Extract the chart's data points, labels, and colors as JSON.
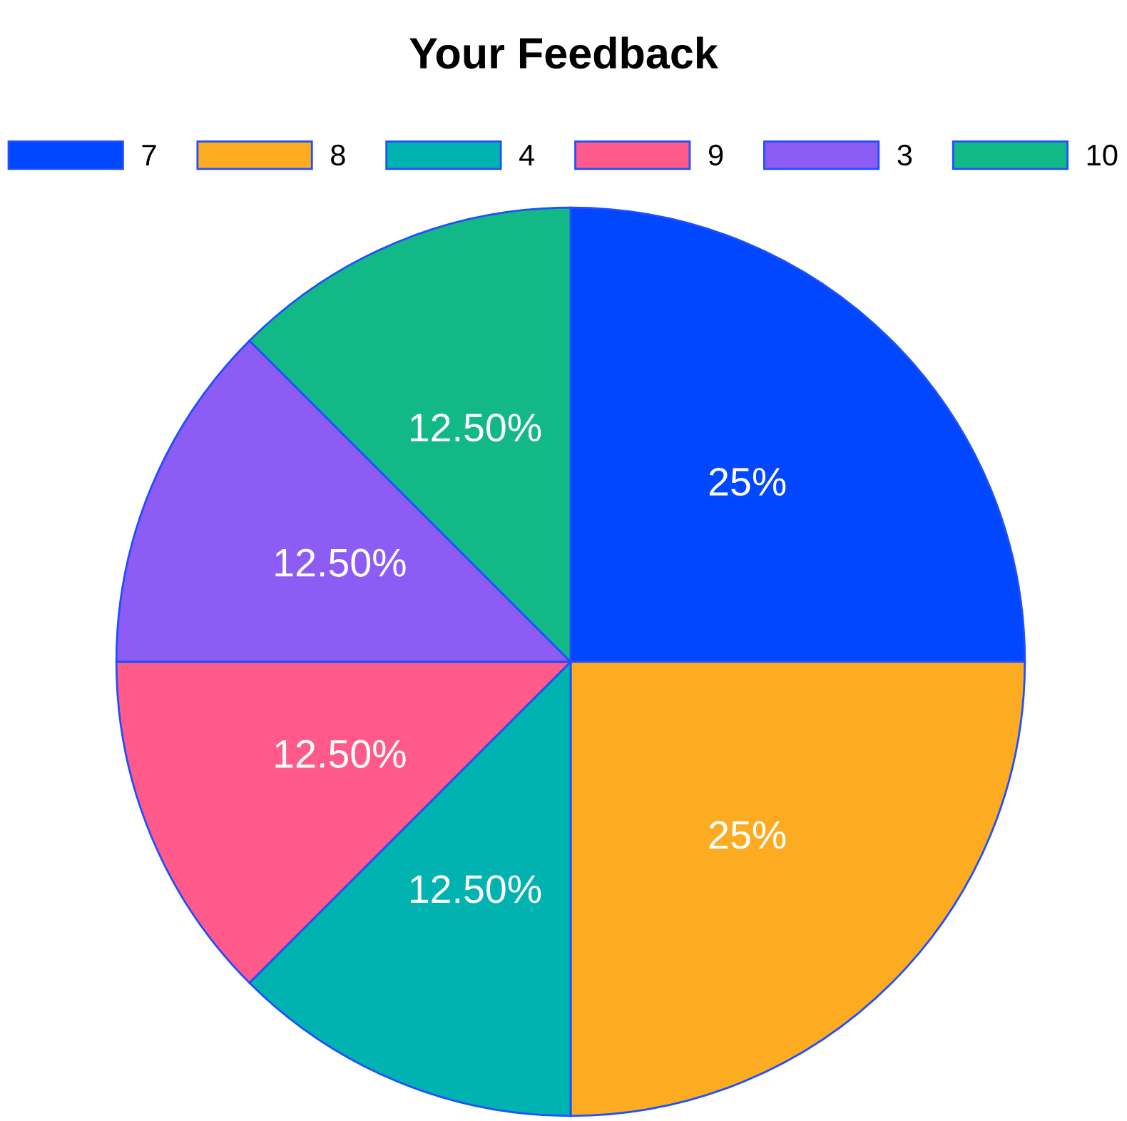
{
  "chart_data": {
    "type": "pie",
    "title": "Your Feedback",
    "categories": [
      "7",
      "8",
      "4",
      "9",
      "3",
      "10"
    ],
    "values": [
      25,
      25,
      12.5,
      12.5,
      12.5,
      12.5
    ],
    "value_labels": [
      "25%",
      "25%",
      "12.50%",
      "12.50%",
      "12.50%",
      "12.50%"
    ],
    "colors": [
      "#0047ff",
      "#fdac21",
      "#00b3b0",
      "#ff5a8a",
      "#8c5cf5",
      "#12b886"
    ],
    "legend": "top"
  }
}
